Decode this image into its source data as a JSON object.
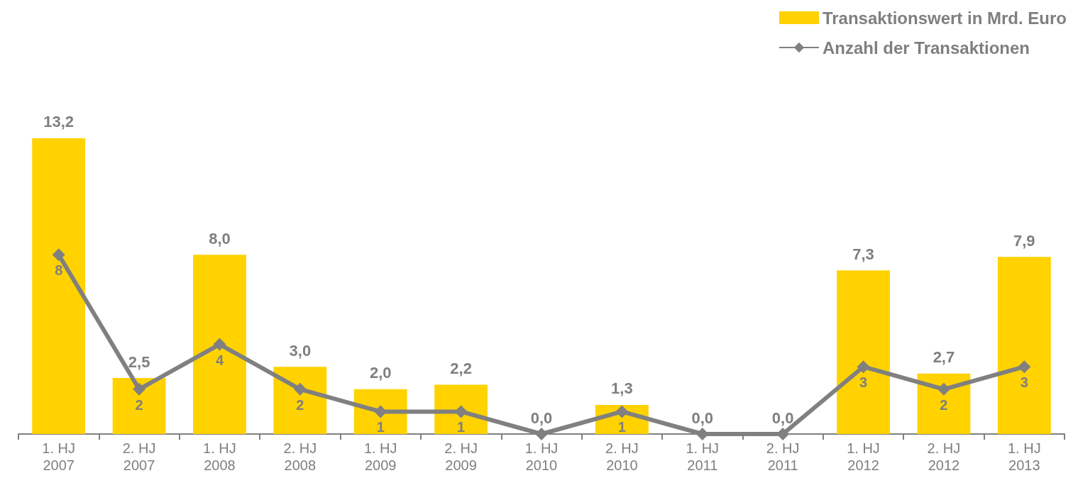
{
  "chart_data": {
    "type": "bar",
    "categories": [
      "1. HJ\n2007",
      "2. HJ\n2007",
      "1. HJ\n2008",
      "2. HJ\n2008",
      "1. HJ\n2009",
      "2. HJ\n2009",
      "1. HJ\n2010",
      "2. HJ\n2010",
      "1. HJ\n2011",
      "2. HJ\n2011",
      "1. HJ\n2012",
      "2. HJ\n2012",
      "1. HJ\n2013"
    ],
    "series": [
      {
        "name": "Transaktionswert in Mrd. Euro",
        "color": "#ffd200",
        "values": [
          13.2,
          2.5,
          8.0,
          3.0,
          2.0,
          2.2,
          0.0,
          1.3,
          0.0,
          0.0,
          7.3,
          2.7,
          7.9
        ],
        "value_labels": [
          "13,2",
          "2,5",
          "8,0",
          "3,0",
          "2,0",
          "2,2",
          "0,0",
          "1,3",
          "0,0",
          "0,0",
          "7,3",
          "2,7",
          "7,9"
        ]
      },
      {
        "name": "Anzahl der Transaktionen",
        "type": "line",
        "color": "#808080",
        "values": [
          8,
          2,
          4,
          2,
          1,
          1,
          0,
          1,
          0,
          0,
          3,
          2,
          3
        ],
        "value_labels": [
          "8",
          "2",
          "4",
          "2",
          "1",
          "1",
          null,
          "1",
          null,
          null,
          "3",
          "2",
          "3"
        ]
      }
    ],
    "marker": "diamond",
    "legend": "top right",
    "grid": false,
    "tick_labels": "x"
  }
}
